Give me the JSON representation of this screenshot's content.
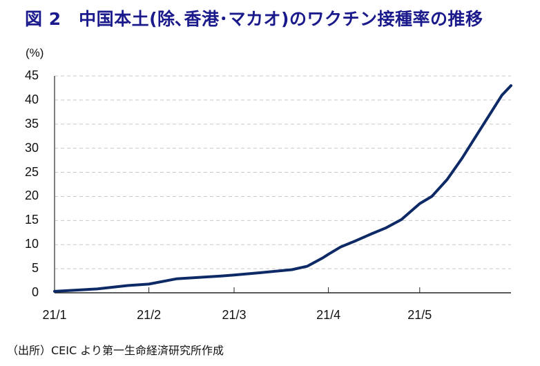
{
  "title": "図 2　中国本土(除､香港･マカオ)のワクチン接種率の推移",
  "source_note": "（出所）CEIC より第一生命経済研究所作成",
  "colors": {
    "title": "#1a1a8c",
    "line": "#0d2a66",
    "grid": "#c8c8c8",
    "axis": "#555555"
  },
  "chart_data": {
    "type": "line",
    "title": "図 2　中国本土(除､香港･マカオ)のワクチン接種率の推移",
    "xlabel": "",
    "ylabel": "(%)",
    "ylim": [
      0,
      45
    ],
    "yticks": [
      0,
      5,
      10,
      15,
      20,
      25,
      30,
      35,
      40,
      45
    ],
    "ytick_labels": [
      "0",
      "5",
      "10",
      "15",
      "20",
      "25",
      "30",
      "35",
      "40",
      "45"
    ],
    "xtick_labels": [
      "21/1",
      "21/2",
      "21/3",
      "21/4",
      "21/5"
    ],
    "grid": {
      "y": true,
      "style": "dashed"
    },
    "legend": null,
    "series": [
      {
        "name": "ワクチン接種率",
        "x": [
          "2021-01-01",
          "2021-01-15",
          "2021-01-25",
          "2021-02-01",
          "2021-02-10",
          "2021-02-15",
          "2021-02-25",
          "2021-03-01",
          "2021-03-10",
          "2021-03-20",
          "2021-03-25",
          "2021-03-30",
          "2021-04-01",
          "2021-04-05",
          "2021-04-10",
          "2021-04-15",
          "2021-04-20",
          "2021-04-25",
          "2021-05-01",
          "2021-05-05",
          "2021-05-10",
          "2021-05-15",
          "2021-05-20",
          "2021-05-25",
          "2021-05-28",
          "2021-05-31"
        ],
        "values": [
          0.3,
          0.8,
          1.5,
          1.8,
          2.9,
          3.1,
          3.5,
          3.7,
          4.2,
          4.8,
          5.5,
          7.2,
          8.0,
          9.5,
          10.8,
          12.2,
          13.5,
          15.2,
          18.5,
          20.0,
          23.5,
          28.0,
          33.0,
          38.0,
          41.0,
          43.0
        ]
      }
    ]
  }
}
